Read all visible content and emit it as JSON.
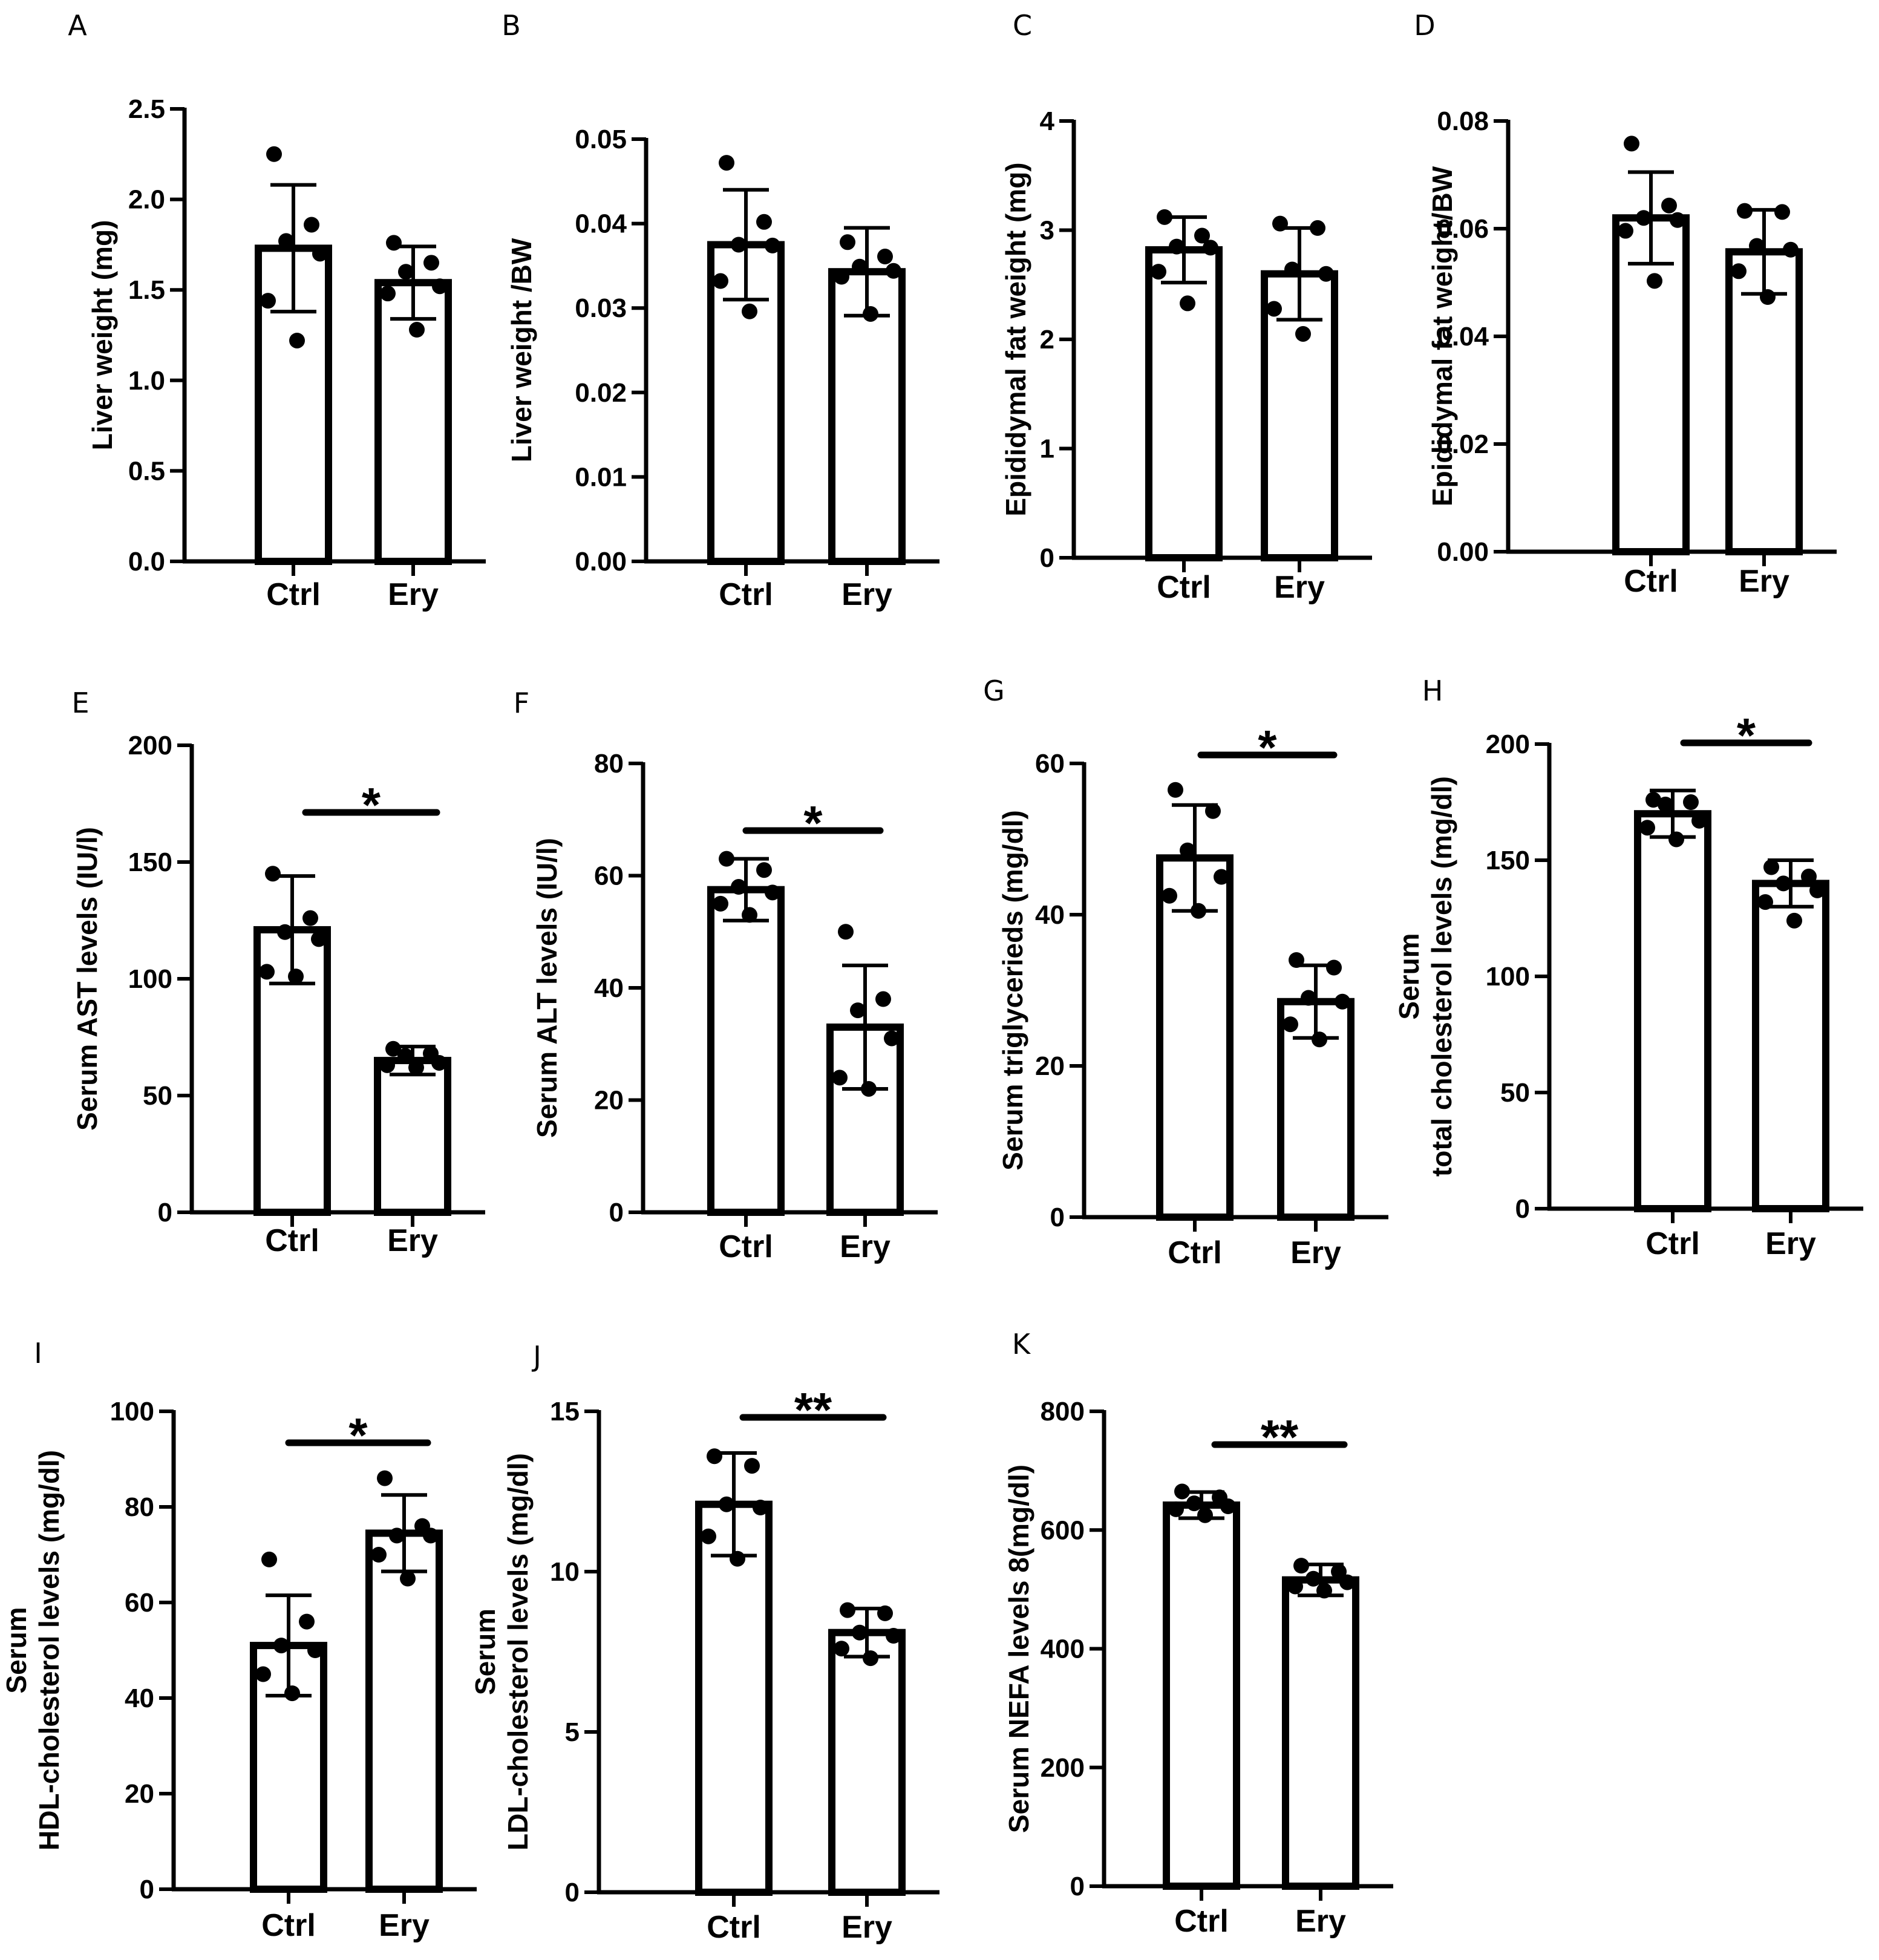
{
  "chart_data": [
    {
      "panel": "A",
      "type": "bar",
      "categories": [
        "Ctrl",
        "Ery"
      ],
      "values": [
        1.73,
        1.54
      ],
      "errors": [
        0.35,
        0.2
      ],
      "points": [
        [
          2.25,
          1.86,
          1.77,
          1.7,
          1.44,
          1.22
        ],
        [
          1.76,
          1.65,
          1.6,
          1.52,
          1.48,
          1.28
        ]
      ],
      "ylabel": [
        "Liver weight (mg)"
      ],
      "ylim": [
        0,
        2.5
      ],
      "yticks": [
        0,
        0.5,
        1.0,
        1.5,
        2.0,
        2.5
      ],
      "yticklabels": [
        "0.0",
        "0.5",
        "1.0",
        "1.5",
        "2.0",
        "2.5"
      ],
      "significance": ""
    },
    {
      "panel": "B",
      "type": "bar",
      "categories": [
        "Ctrl",
        "Ery"
      ],
      "values": [
        0.0375,
        0.0343
      ],
      "errors": [
        0.0065,
        0.0052
      ],
      "points": [
        [
          0.0472,
          0.0402,
          0.0375,
          0.0374,
          0.0332,
          0.0296
        ],
        [
          0.0378,
          0.0361,
          0.0349,
          0.0344,
          0.0337,
          0.0293
        ]
      ],
      "ylabel": [
        "Liver weight /BW"
      ],
      "ylim": [
        0,
        0.05
      ],
      "yticks": [
        0,
        0.01,
        0.02,
        0.03,
        0.04,
        0.05
      ],
      "yticklabels": [
        "0.00",
        "0.01",
        "0.02",
        "0.03",
        "0.04",
        "0.05"
      ],
      "significance": ""
    },
    {
      "panel": "C",
      "type": "bar",
      "categories": [
        "Ctrl",
        "Ery"
      ],
      "values": [
        2.82,
        2.6
      ],
      "errors": [
        0.3,
        0.42
      ],
      "points": [
        [
          3.12,
          2.95,
          2.85,
          2.84,
          2.62,
          2.33
        ],
        [
          3.06,
          3.02,
          2.64,
          2.6,
          2.28,
          2.05
        ]
      ],
      "ylabel": [
        "Epididymal fat weight (mg)"
      ],
      "ylim": [
        0,
        4
      ],
      "yticks": [
        0,
        1,
        2,
        3,
        4
      ],
      "yticklabels": [
        "0",
        "1",
        "2",
        "3",
        "4"
      ],
      "significance": ""
    },
    {
      "panel": "D",
      "type": "bar",
      "categories": [
        "Ctrl",
        "Ery"
      ],
      "values": [
        0.062,
        0.0557
      ],
      "errors": [
        0.0085,
        0.0078
      ],
      "points": [
        [
          0.0758,
          0.0643,
          0.062,
          0.0616,
          0.0596,
          0.0503
        ],
        [
          0.0633,
          0.0631,
          0.0568,
          0.0561,
          0.0521,
          0.0473
        ]
      ],
      "ylabel": [
        "Epididymal fat weight/BW"
      ],
      "ylim": [
        0,
        0.08
      ],
      "yticks": [
        0,
        0.02,
        0.04,
        0.06,
        0.08
      ],
      "yticklabels": [
        "0.00",
        "0.02",
        "0.04",
        "0.06",
        "0.08"
      ],
      "significance": ""
    },
    {
      "panel": "E",
      "type": "bar",
      "categories": [
        "Ctrl",
        "Ery"
      ],
      "values": [
        121,
        65
      ],
      "errors": [
        23,
        6
      ],
      "points": [
        [
          145,
          126,
          120,
          117,
          103,
          101
        ],
        [
          70,
          68,
          67,
          64,
          63,
          62
        ]
      ],
      "ylabel": [
        "Serum AST levels (IU/l)"
      ],
      "ylim": [
        0,
        200
      ],
      "yticks": [
        0,
        50,
        100,
        150,
        200
      ],
      "yticklabels": [
        "0",
        "50",
        "100",
        "150",
        "200"
      ],
      "significance": "*"
    },
    {
      "panel": "F",
      "type": "bar",
      "categories": [
        "Ctrl",
        "Ery"
      ],
      "values": [
        57.5,
        33
      ],
      "errors": [
        5.5,
        11
      ],
      "points": [
        [
          63,
          61,
          58,
          57,
          55,
          53
        ],
        [
          50,
          38,
          36,
          31,
          24,
          22
        ]
      ],
      "ylabel": [
        "Serum ALT levels (IU/l)"
      ],
      "ylim": [
        0,
        80
      ],
      "yticks": [
        0,
        20,
        40,
        60,
        80
      ],
      "yticklabels": [
        "0",
        "20",
        "40",
        "60",
        "80"
      ],
      "significance": "*"
    },
    {
      "panel": "G",
      "type": "bar",
      "categories": [
        "Ctrl",
        "Ery"
      ],
      "values": [
        47.5,
        28.5
      ],
      "errors": [
        7,
        4.8
      ],
      "points": [
        [
          56.5,
          53.7,
          48.5,
          45,
          42.5,
          40.5
        ],
        [
          34,
          33,
          29,
          28.5,
          25.5,
          23.5
        ]
      ],
      "ylabel": [
        "Serum triglycerieds (mg/dl)"
      ],
      "ylim": [
        0,
        60
      ],
      "yticks": [
        0,
        20,
        40,
        60
      ],
      "yticklabels": [
        "0",
        "20",
        "40",
        "60"
      ],
      "significance": "*"
    },
    {
      "panel": "H",
      "type": "bar",
      "categories": [
        "Ctrl",
        "Ery"
      ],
      "values": [
        170,
        140
      ],
      "errors": [
        10,
        10
      ],
      "points": [
        [
          176,
          175,
          174,
          167,
          164,
          159
        ],
        [
          147,
          143,
          140,
          137,
          132,
          124
        ]
      ],
      "ylabel": [
        "Serum",
        "total cholesterol levels (mg/dl)"
      ],
      "ylim": [
        0,
        200
      ],
      "yticks": [
        0,
        50,
        100,
        150,
        200
      ],
      "yticklabels": [
        "0",
        "50",
        "100",
        "150",
        "200"
      ],
      "significance": "*"
    },
    {
      "panel": "I",
      "type": "bar",
      "categories": [
        "Ctrl",
        "Ery"
      ],
      "values": [
        51,
        74.5
      ],
      "errors": [
        10.5,
        8
      ],
      "points": [
        [
          69,
          56,
          51,
          50,
          45,
          41
        ],
        [
          86,
          76,
          74,
          74,
          70,
          65
        ]
      ],
      "ylabel": [
        "Serum",
        "HDL-cholesterol levels (mg/dl)"
      ],
      "ylim": [
        0,
        100
      ],
      "yticks": [
        0,
        20,
        40,
        60,
        80,
        100
      ],
      "yticklabels": [
        "0",
        "20",
        "40",
        "60",
        "80",
        "100"
      ],
      "significance": "*"
    },
    {
      "panel": "J",
      "type": "bar",
      "categories": [
        "Ctrl",
        "Ery"
      ],
      "values": [
        12.1,
        8.1
      ],
      "errors": [
        1.6,
        0.75
      ],
      "points": [
        [
          13.6,
          13.3,
          12.1,
          12.0,
          11.1,
          10.4
        ],
        [
          8.8,
          8.7,
          8.1,
          8.0,
          7.6,
          7.3
        ]
      ],
      "ylabel": [
        "Serum",
        "LDL-cholesterol levels (mg/dl)"
      ],
      "ylim": [
        0,
        15
      ],
      "yticks": [
        0,
        5,
        10,
        15
      ],
      "yticklabels": [
        "0",
        "5",
        "10",
        "15"
      ],
      "significance": "**"
    },
    {
      "panel": "K",
      "type": "bar",
      "categories": [
        "Ctrl",
        "Ery"
      ],
      "values": [
        642,
        516
      ],
      "errors": [
        22,
        26
      ],
      "points": [
        [
          665,
          655,
          645,
          640,
          635,
          625
        ],
        [
          540,
          530,
          518,
          512,
          505,
          498
        ]
      ],
      "ylabel": [
        "Serum NEFA levels 8(mg/dl)"
      ],
      "ylim": [
        0,
        800
      ],
      "yticks": [
        0,
        200,
        400,
        600,
        800
      ],
      "yticklabels": [
        "0",
        "200",
        "400",
        "600",
        "800"
      ],
      "significance": "**"
    }
  ]
}
